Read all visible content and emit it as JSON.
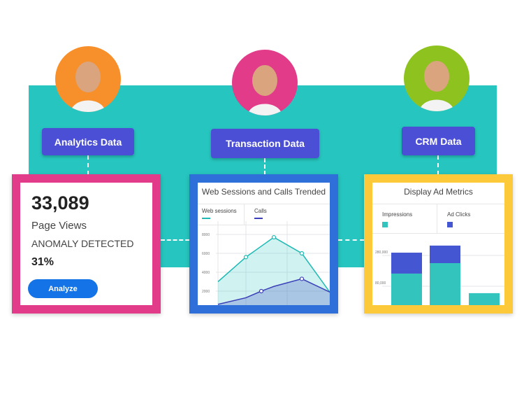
{
  "labels": {
    "analytics": "Analytics Data",
    "transaction": "Transaction Data",
    "crm": "CRM Data"
  },
  "avatars": [
    {
      "name": "woman-blonde",
      "bg": "#f7902b"
    },
    {
      "name": "man-smiling",
      "bg": "#e23b8a"
    },
    {
      "name": "woman-dark-hair",
      "bg": "#8dc21f"
    }
  ],
  "analytics_card": {
    "value": "33,089",
    "metric": "Page Views",
    "status": "ANOMALY DETECTED",
    "percent": "31%",
    "button": "Analyze",
    "border": "#e23b8a"
  },
  "colors": {
    "teal": "#27c5bf",
    "label": "#4b4fd6",
    "blue_border": "#2f6fd9",
    "yellow_border": "#fcc93a",
    "button": "#1473e6"
  },
  "chart_data": [
    {
      "type": "area",
      "title": "Web Sessions and Calls Trended",
      "yticks": [
        "8000",
        "6000",
        "4000",
        "2000"
      ],
      "grid": true,
      "series": [
        {
          "name": "Web sessions",
          "color": "#1fb9b3",
          "x": [
            0,
            1,
            2,
            3,
            4
          ],
          "values": [
            3000,
            5600,
            7700,
            6000,
            1900
          ],
          "markers": [
            1,
            2,
            3
          ]
        },
        {
          "name": "Calls",
          "color": "#3b3fb8",
          "x": [
            0,
            1,
            1.55,
            2,
            3,
            4
          ],
          "values": [
            600,
            1300,
            2000,
            2500,
            3300,
            1900
          ],
          "markers": [
            2,
            4
          ]
        }
      ]
    },
    {
      "type": "bar",
      "stacked": true,
      "title": "Display Ad Metrics",
      "yticks": [
        "280,000",
        "80,000"
      ],
      "grid": true,
      "series": [
        {
          "name": "Impressions",
          "color": "#33c4bd",
          "values": [
            162000,
            230000,
            35000
          ]
        },
        {
          "name": "Ad Clicks",
          "color": "#4456d1",
          "values": [
            136000,
            114000,
            0
          ]
        }
      ]
    }
  ]
}
